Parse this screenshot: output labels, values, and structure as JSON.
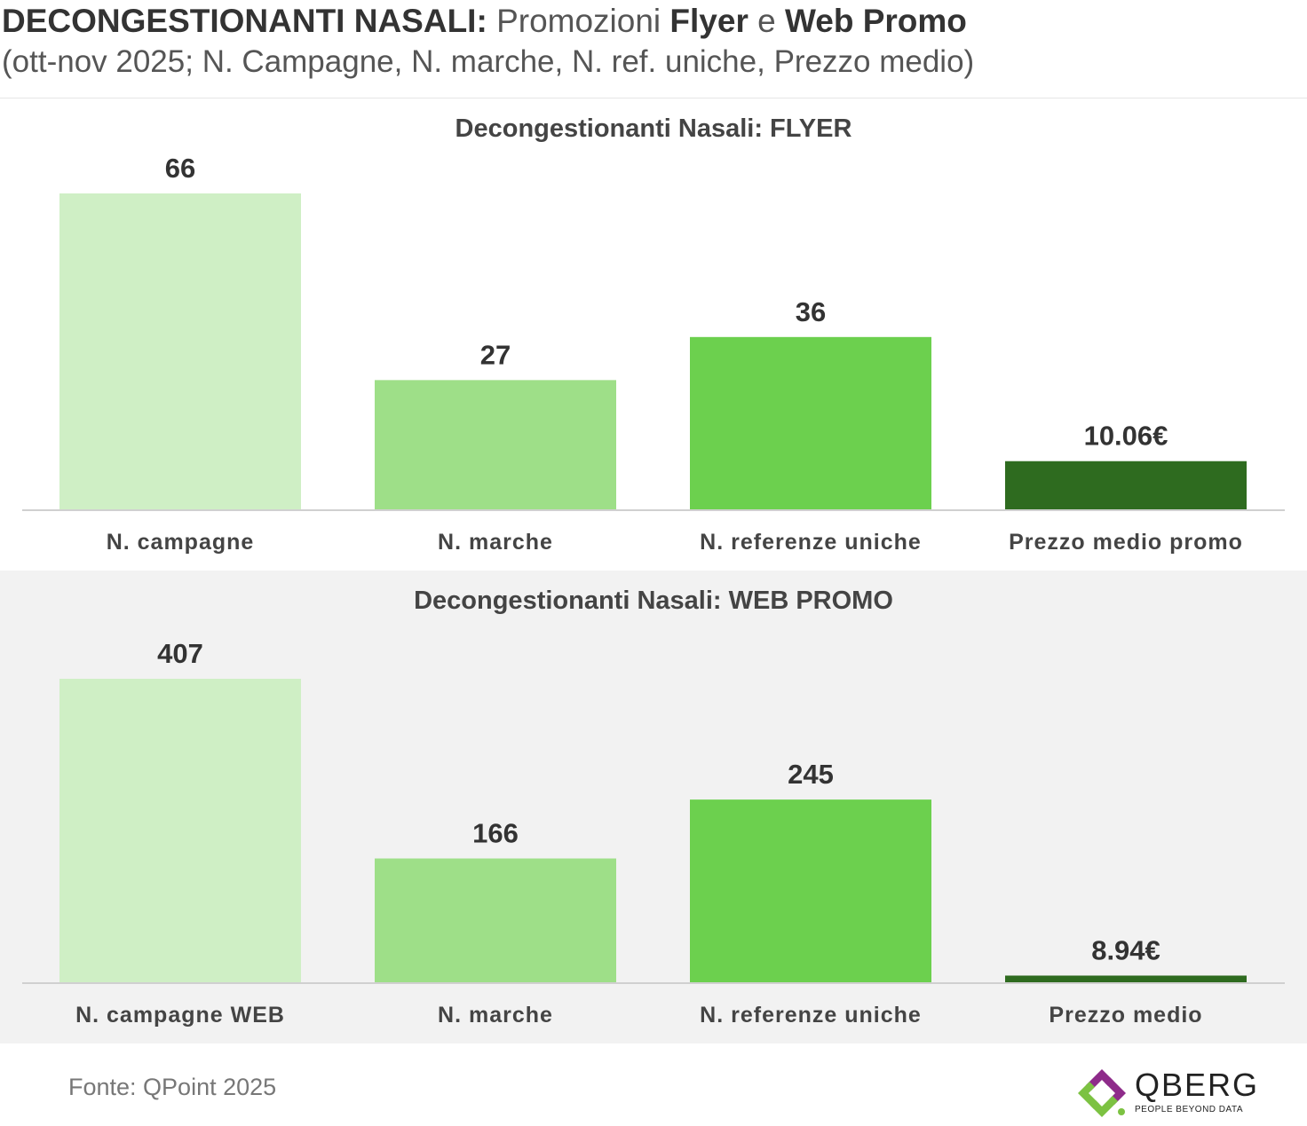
{
  "header": {
    "title_bold": "DECONGESTIONANTI NASALI:",
    "title_part1": "Promozioni",
    "title_bold2": "Flyer",
    "title_part2": "e",
    "title_bold3": "Web Promo",
    "subtitle": "(ott-nov 2025; N. Campagne, N. marche, N. ref. uniche, Prezzo medio)"
  },
  "colors": [
    "#cfefc5",
    "#9edf88",
    "#6cd04e",
    "#2e6b1f"
  ],
  "chart_data": [
    {
      "type": "bar",
      "title": "Decongestionanti Nasali: FLYER",
      "categories": [
        "N. campagne",
        "N. marche",
        "N. referenze uniche",
        "Prezzo medio promo"
      ],
      "values": [
        66,
        27,
        36,
        10.06
      ],
      "value_labels": [
        "66",
        "27",
        "36",
        "10.06€"
      ],
      "ylim": [
        0,
        66
      ],
      "grid": false
    },
    {
      "type": "bar",
      "title": "Decongestionanti Nasali: WEB PROMO",
      "categories": [
        "N. campagne WEB",
        "N. marche",
        "N. referenze uniche",
        "Prezzo medio"
      ],
      "values": [
        407,
        166,
        245,
        8.94
      ],
      "value_labels": [
        "407",
        "166",
        "245",
        "8.94€"
      ],
      "ylim": [
        0,
        407
      ],
      "grid": false
    }
  ],
  "footer": {
    "source": "Fonte: QPoint 2025",
    "logo_name": "QBERG",
    "logo_tagline": "PEOPLE BEYOND DATA"
  }
}
